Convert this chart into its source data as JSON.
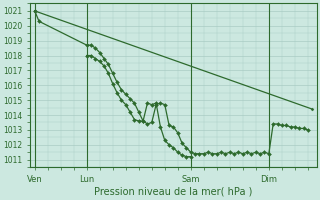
{
  "title": "Pression niveau de la mer( hPa )",
  "ylabel_values": [
    1011,
    1012,
    1013,
    1014,
    1015,
    1016,
    1017,
    1018,
    1019,
    1020,
    1021
  ],
  "ylim": [
    1010.5,
    1021.5
  ],
  "bg_color": "#cce8e0",
  "grid_color": "#aaccc4",
  "line_color": "#2d6a2d",
  "x_tick_labels": [
    "Ven",
    "Lun",
    "Sam",
    "Dim"
  ],
  "x_tick_positions": [
    0,
    12,
    36,
    54
  ],
  "x_vlines": [
    12,
    36,
    54
  ],
  "xlim": [
    -1,
    65
  ],
  "n_points": 66,
  "series": {
    "straight": {
      "x": [
        0,
        1,
        12,
        13,
        36,
        37,
        54,
        55,
        63,
        64
      ],
      "y": [
        1021.0,
        1020.3,
        1018.0,
        1017.9,
        1016.5,
        1016.4,
        1015.0,
        1014.9,
        1014.4,
        1014.4
      ]
    },
    "line1": {
      "x": [
        0,
        1,
        12,
        13,
        14,
        15,
        16,
        17,
        18,
        19,
        20,
        21,
        22,
        23,
        24,
        25,
        26,
        27,
        28,
        29,
        30,
        31,
        32,
        33,
        34,
        35,
        36,
        37,
        38,
        39,
        40,
        41,
        42,
        43,
        44,
        45,
        46,
        47,
        48,
        49,
        50,
        51,
        52,
        53,
        54,
        55,
        56,
        57,
        58,
        59,
        60,
        61,
        62,
        63
      ],
      "y": [
        1021.0,
        1020.3,
        1018.7,
        1018.7,
        1018.5,
        1018.2,
        1017.8,
        1017.4,
        1016.8,
        1016.2,
        1015.7,
        1015.4,
        1015.1,
        1014.8,
        1014.2,
        1013.6,
        1013.4,
        1013.5,
        1014.7,
        1014.8,
        1014.7,
        1013.3,
        1013.2,
        1012.8,
        1012.1,
        1011.8,
        1011.5,
        1011.4,
        1011.4,
        1011.4,
        1011.5,
        1011.4,
        1011.4,
        1011.5,
        1011.4,
        1011.5,
        1011.4,
        1011.5,
        1011.4,
        1011.5,
        1011.4,
        1011.5,
        1011.4,
        1011.5,
        1011.4,
        1013.4,
        1013.4,
        1013.3,
        1013.3,
        1013.2,
        1013.2,
        1013.1,
        1013.1,
        1013.0
      ]
    },
    "line2": {
      "x": [
        12,
        13,
        14,
        15,
        16,
        17,
        18,
        19,
        20,
        21,
        22,
        23,
        24,
        25,
        26,
        27,
        28,
        29,
        30,
        31,
        32,
        33,
        34,
        35,
        36
      ],
      "y": [
        1018.0,
        1018.0,
        1017.8,
        1017.6,
        1017.3,
        1016.8,
        1016.1,
        1015.5,
        1015.0,
        1014.7,
        1014.2,
        1013.7,
        1013.6,
        1013.6,
        1014.8,
        1014.7,
        1014.8,
        1013.2,
        1012.3,
        1012.0,
        1011.8,
        1011.5,
        1011.3,
        1011.2,
        1011.2
      ]
    }
  },
  "straight_line": {
    "x": [
      0,
      64
    ],
    "y": [
      1021.0,
      1014.4
    ]
  }
}
